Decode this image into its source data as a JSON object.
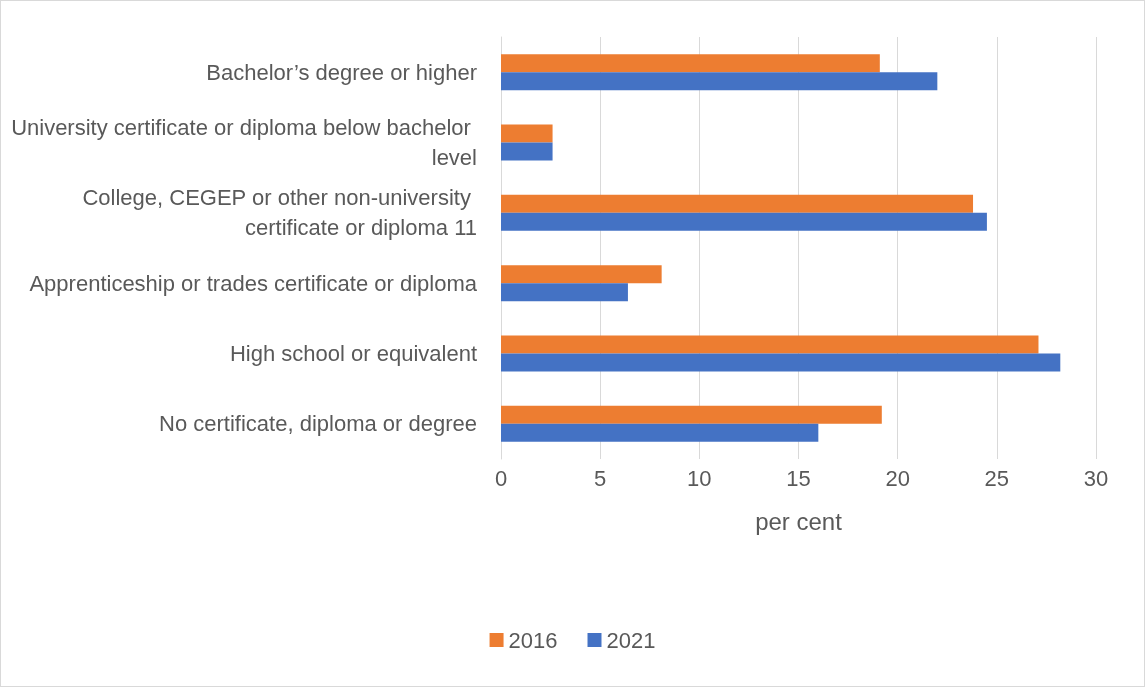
{
  "chart_data": {
    "type": "bar",
    "orientation": "horizontal",
    "xlabel": "per cent",
    "categories": [
      "Bachelor’s degree or higher",
      "University certificate or diploma below bachelor level",
      "College, CEGEP or other non-university certificate or diploma 11",
      "Apprenticeship or trades certificate or diploma",
      "High school or equivalent",
      "No certificate, diploma or degree"
    ],
    "series": [
      {
        "name": "2016",
        "color": "#ed7d31",
        "values": [
          19.1,
          2.6,
          23.8,
          8.1,
          27.1,
          19.2
        ]
      },
      {
        "name": "2021",
        "color": "#4472c4",
        "values": [
          22.0,
          2.6,
          24.5,
          6.4,
          28.2,
          16.0
        ]
      }
    ],
    "xlim": [
      0,
      30
    ],
    "xticks": [
      0,
      5,
      10,
      15,
      20,
      25,
      30
    ],
    "grid": "x",
    "legend": "bottom"
  }
}
